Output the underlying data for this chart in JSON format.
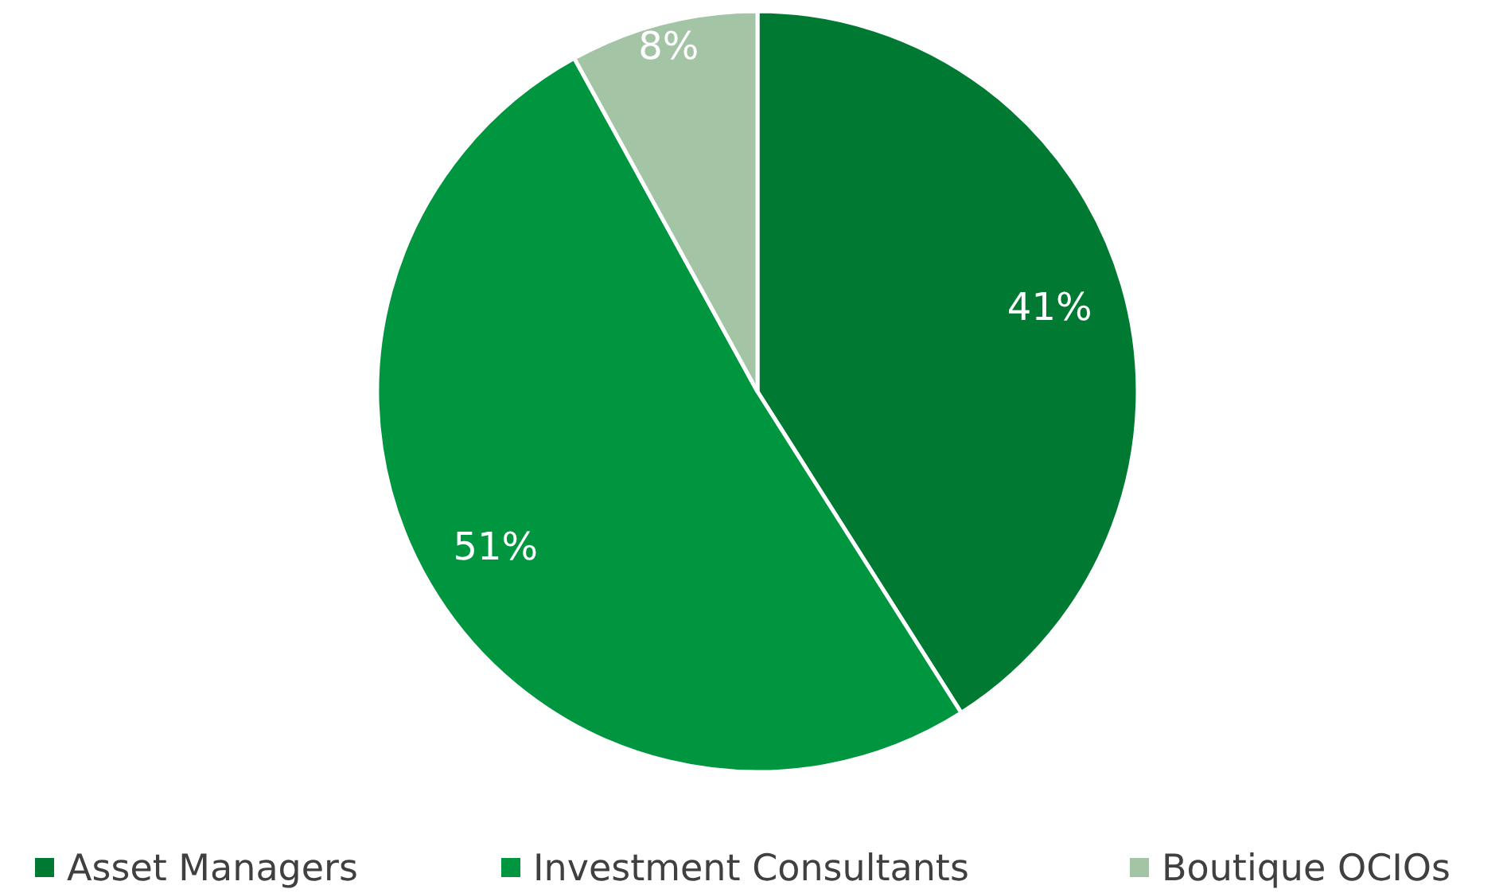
{
  "chart_data": {
    "type": "pie",
    "categories": [
      "Asset Managers",
      "Investment Consultants",
      "Boutique OCIOs"
    ],
    "values": [
      41,
      51,
      8
    ],
    "value_labels": [
      "41%",
      "51%",
      "8%"
    ],
    "colors": [
      "#007a33",
      "#00953f",
      "#a3c4a5"
    ],
    "legend": "bottom"
  }
}
